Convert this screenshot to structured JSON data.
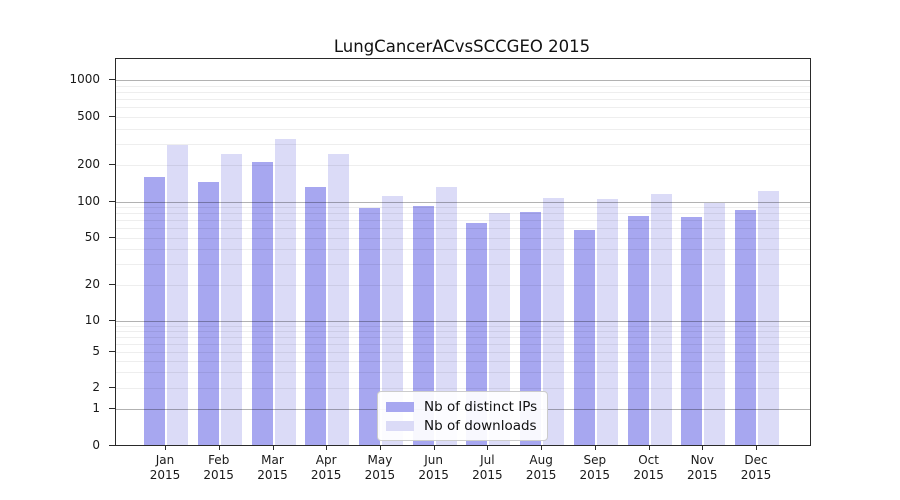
{
  "title": "LungCancerACvsSCCGEO 2015",
  "colors": {
    "ips_bar": "#a7a7f0",
    "downloads_bar": "#dbdbf7",
    "grid_major": "rgba(0,0,0,0.30)",
    "grid_minor": "rgba(0,0,0,0.065)",
    "spine": "#2a2a2a"
  },
  "legend": {
    "items": [
      {
        "label": "Nb of distinct IPs",
        "series": "ips"
      },
      {
        "label": "Nb of downloads",
        "series": "downloads"
      }
    ]
  },
  "chart_data": {
    "type": "bar",
    "title": "LungCancerACvsSCCGEO 2015",
    "categories": [
      "Jan",
      "Feb",
      "Mar",
      "Apr",
      "May",
      "Jun",
      "Jul",
      "Aug",
      "Sep",
      "Oct",
      "Nov",
      "Dec"
    ],
    "category_year": "2015",
    "series": [
      {
        "name": "Nb of distinct IPs",
        "color": "#a7a7f0",
        "values": [
          160,
          145,
          210,
          132,
          89,
          92,
          66,
          82,
          58,
          76,
          74,
          85
        ]
      },
      {
        "name": "Nb of downloads",
        "color": "#dbdbf7",
        "values": [
          295,
          245,
          325,
          248,
          112,
          133,
          80,
          106,
          104,
          115,
          97,
          122
        ]
      }
    ],
    "yscale": "symlog",
    "ylim": [
      0,
      1500
    ],
    "yticks": [
      0,
      1,
      2,
      5,
      10,
      20,
      50,
      100,
      200,
      500,
      1000
    ],
    "ytick_labels": [
      "0",
      "1",
      "2",
      "5",
      "10",
      "20",
      "50",
      "100",
      "200",
      "500",
      "1000"
    ],
    "minor_yticks": [
      3,
      4,
      6,
      7,
      8,
      9,
      30,
      40,
      60,
      70,
      80,
      90,
      300,
      400,
      600,
      700,
      800,
      900
    ],
    "grid": true,
    "legend_position": "lower-center",
    "xlabel": "",
    "ylabel": ""
  }
}
